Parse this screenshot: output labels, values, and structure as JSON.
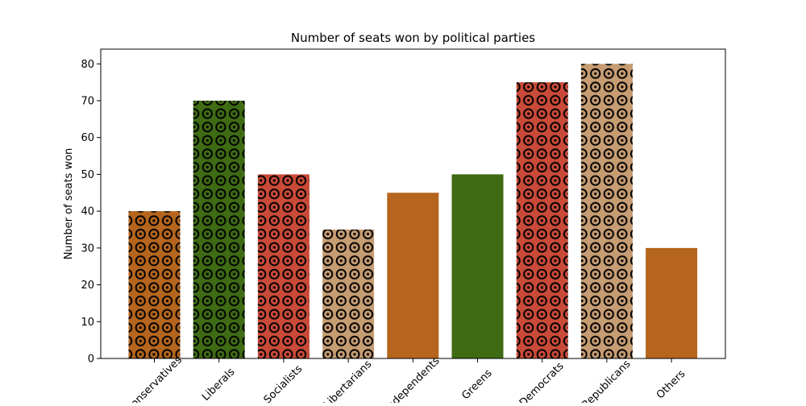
{
  "chart_data": {
    "type": "bar",
    "title": "Number of seats won by political parties",
    "xlabel": "",
    "ylabel": "Number of seats won",
    "ylim": [
      0,
      84
    ],
    "yticks": [
      0,
      10,
      20,
      30,
      40,
      50,
      60,
      70,
      80
    ],
    "grid": false,
    "categories": [
      "Conservatives",
      "Liberals",
      "Socialists",
      "Libertarians",
      "Independents",
      "Greens",
      "Democrats",
      "Republicans",
      "Others"
    ],
    "values": [
      40,
      70,
      50,
      35,
      45,
      50,
      75,
      80,
      30
    ],
    "colors": [
      "#b5651d",
      "#3e6b13",
      "#c94a38",
      "#c69c72",
      "#b5651d",
      "#3e6b13",
      "#c94a38",
      "#c69c72",
      "#b5651d"
    ],
    "hatched": [
      true,
      true,
      true,
      true,
      false,
      false,
      true,
      true,
      false
    ],
    "hatch_pattern": "circle-dots"
  }
}
